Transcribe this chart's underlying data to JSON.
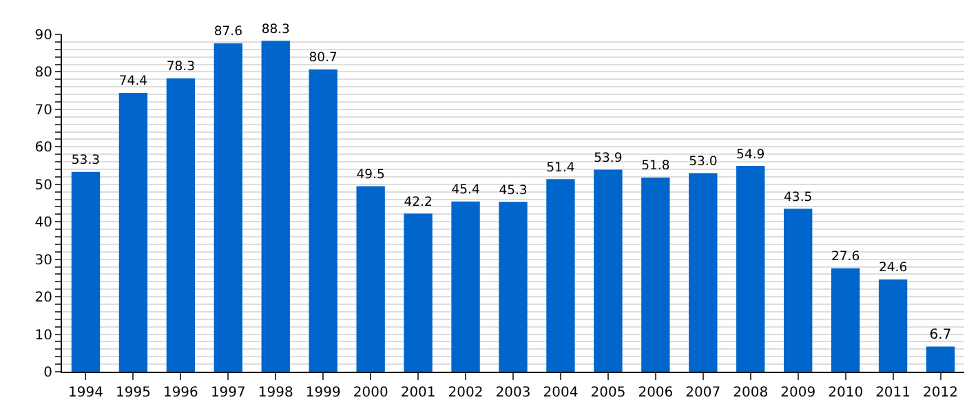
{
  "chart_data": {
    "type": "bar",
    "categories": [
      "1994",
      "1995",
      "1996",
      "1997",
      "1998",
      "1999",
      "2000",
      "2001",
      "2002",
      "2003",
      "2004",
      "2005",
      "2006",
      "2007",
      "2008",
      "2009",
      "2010",
      "2011",
      "2012"
    ],
    "values": [
      53.3,
      74.4,
      78.3,
      87.6,
      88.3,
      80.7,
      49.5,
      42.2,
      45.4,
      45.3,
      51.4,
      53.9,
      51.8,
      53.0,
      54.9,
      43.5,
      27.6,
      24.6,
      6.7
    ],
    "color": "#0066cc",
    "value_labels": [
      "53.3",
      "74.4",
      "78.3",
      "87.6",
      "88.3",
      "80.7",
      "49.5",
      "42.2",
      "45.4",
      "45.3",
      "51.4",
      "53.9",
      "51.8",
      "53.0",
      "54.9",
      "43.5",
      "27.6",
      "24.6",
      "6.7"
    ],
    "ylim": [
      0,
      90
    ],
    "yticks": [
      0,
      {
        "value": 2,
        "label": null
      },
      {
        "value": 4,
        "label": null
      },
      {
        "value": 6,
        "label": null
      },
      {
        "value": 8,
        "label": null
      },
      10,
      {
        "value": 12,
        "label": null
      },
      {
        "value": 14,
        "label": null
      },
      {
        "value": 16,
        "label": null
      },
      {
        "value": 18,
        "label": null
      },
      20,
      {
        "value": 22,
        "label": null
      },
      {
        "value": 24,
        "label": null
      },
      {
        "value": 26,
        "label": null
      },
      {
        "value": 28,
        "label": null
      },
      30,
      {
        "value": 32,
        "label": null
      },
      {
        "value": 34,
        "label": null
      },
      {
        "value": 36,
        "label": null
      },
      {
        "value": 38,
        "label": null
      },
      40,
      {
        "value": 42,
        "label": null
      },
      {
        "value": 44,
        "label": null
      },
      {
        "value": 46,
        "label": null
      },
      {
        "value": 48,
        "label": null
      },
      50,
      {
        "value": 52,
        "label": null
      },
      {
        "value": 54,
        "label": null
      },
      {
        "value": 56,
        "label": null
      },
      {
        "value": 58,
        "label": null
      },
      60,
      {
        "value": 62,
        "label": null
      },
      {
        "value": 64,
        "label": null
      },
      {
        "value": 66,
        "label": null
      },
      {
        "value": 68,
        "label": null
      },
      70,
      {
        "value": 72,
        "label": null
      },
      {
        "value": 74,
        "label": null
      },
      {
        "value": 76,
        "label": null
      },
      {
        "value": 78,
        "label": null
      },
      80,
      {
        "value": 82,
        "label": null
      },
      {
        "value": 84,
        "label": null
      },
      {
        "value": 86,
        "label": null
      },
      {
        "value": 88,
        "label": null
      },
      90
    ],
    "grid": "y"
  }
}
